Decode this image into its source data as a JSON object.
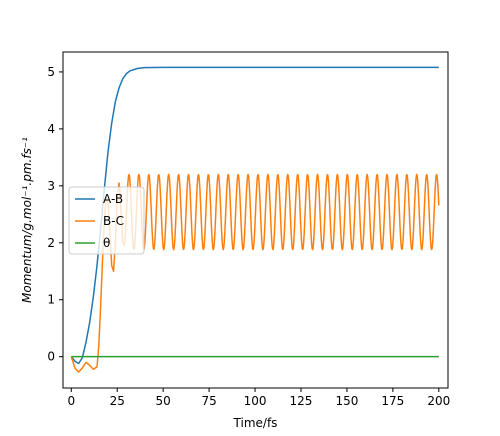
{
  "chart_data": {
    "type": "line",
    "title": "",
    "xlabel": "Time/fs",
    "ylabel": "Momentum/g.mol⁻¹.pm.fs⁻¹",
    "xlim": [
      -4.5,
      205
    ],
    "ylim": [
      -0.55,
      5.35
    ],
    "xticks": [
      0,
      25,
      50,
      75,
      100,
      125,
      150,
      175,
      200
    ],
    "yticks": [
      0,
      1,
      2,
      3,
      4,
      5
    ],
    "grid": false,
    "legend_position": "center-left",
    "series": [
      {
        "name": "A-B",
        "color": "#1f77b4",
        "x": [
          0,
          2,
          4,
          6,
          8,
          10,
          12,
          14,
          16,
          18,
          20,
          22,
          24,
          26,
          28,
          30,
          32,
          34,
          36,
          38,
          40,
          45,
          50,
          60,
          80,
          100,
          150,
          200
        ],
        "y": [
          0.0,
          -0.08,
          -0.12,
          -0.02,
          0.25,
          0.6,
          1.05,
          1.6,
          2.25,
          2.95,
          3.6,
          4.1,
          4.48,
          4.72,
          4.88,
          4.97,
          5.02,
          5.04,
          5.06,
          5.07,
          5.075,
          5.078,
          5.08,
          5.08,
          5.08,
          5.08,
          5.08,
          5.08
        ]
      },
      {
        "name": "B-C",
        "color": "#ff7f0e",
        "points_note": "damped start then sustained oscillation between ~1.9 and ~3.2 with period ~5.4 fs",
        "x": [
          0,
          2,
          4,
          6,
          8,
          10,
          12,
          14,
          15,
          16,
          17,
          18,
          19,
          20,
          21,
          22,
          23,
          24,
          25,
          26,
          27,
          28,
          29,
          30
        ],
        "y": [
          0.0,
          -0.2,
          -0.27,
          -0.2,
          -0.1,
          -0.15,
          -0.22,
          -0.18,
          0.2,
          0.9,
          1.7,
          2.4,
          2.8,
          2.7,
          2.2,
          1.6,
          1.5,
          2.0,
          2.8,
          3.05,
          2.6,
          2.0,
          1.95,
          2.5
        ]
      },
      {
        "name": "θ",
        "color": "#2ca02c",
        "x": [
          0,
          200
        ],
        "y": [
          0,
          0
        ]
      }
    ],
    "oscillation": {
      "series": "B-C",
      "start_x": 30,
      "end_x": 200,
      "min": 1.88,
      "max": 3.2,
      "period": 5.4,
      "end_value": 2.78
    }
  }
}
